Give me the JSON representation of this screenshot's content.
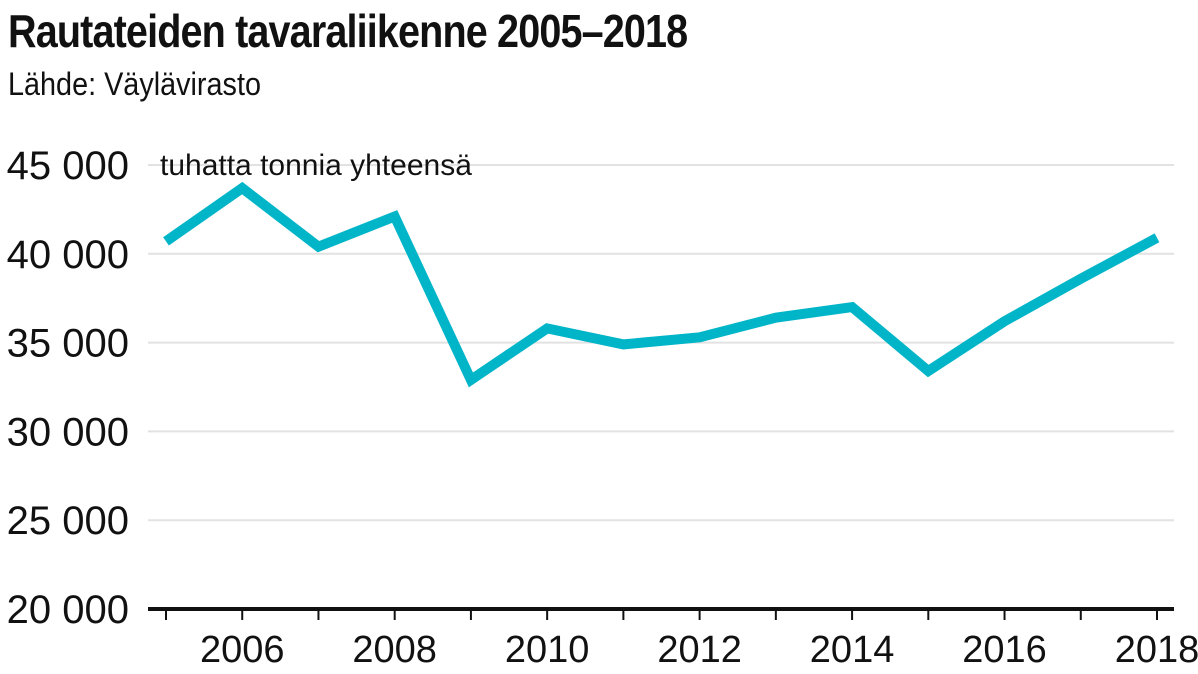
{
  "header": {
    "title": "Rautateiden tavaraliikenne 2005–2018",
    "source": "Lähde: Väylävirasto"
  },
  "chart_data": {
    "type": "line",
    "title": "Rautateiden tavaraliikenne 2005–2018",
    "subtitle": "Lähde: Väylävirasto",
    "unit_label": "tuhatta tonnia yhteensä",
    "x": [
      2005,
      2006,
      2007,
      2008,
      2009,
      2010,
      2011,
      2012,
      2013,
      2014,
      2015,
      2016,
      2017,
      2018
    ],
    "series": [
      {
        "values": [
          40700,
          43700,
          40400,
          42100,
          32900,
          35800,
          34900,
          35300,
          36400,
          37000,
          33400,
          36200,
          38600,
          40900
        ],
        "color": "#00b5c8"
      }
    ],
    "xticks": [
      "2006",
      "2008",
      "2010",
      "2012",
      "2014",
      "2016",
      "2018"
    ],
    "yticks": [
      "20 000",
      "25 000",
      "30 000",
      "35 000",
      "40 000",
      "45 000"
    ],
    "ylim": [
      20000,
      45000
    ],
    "xlim": [
      2005,
      2018
    ],
    "grid": true,
    "legend": "none"
  }
}
